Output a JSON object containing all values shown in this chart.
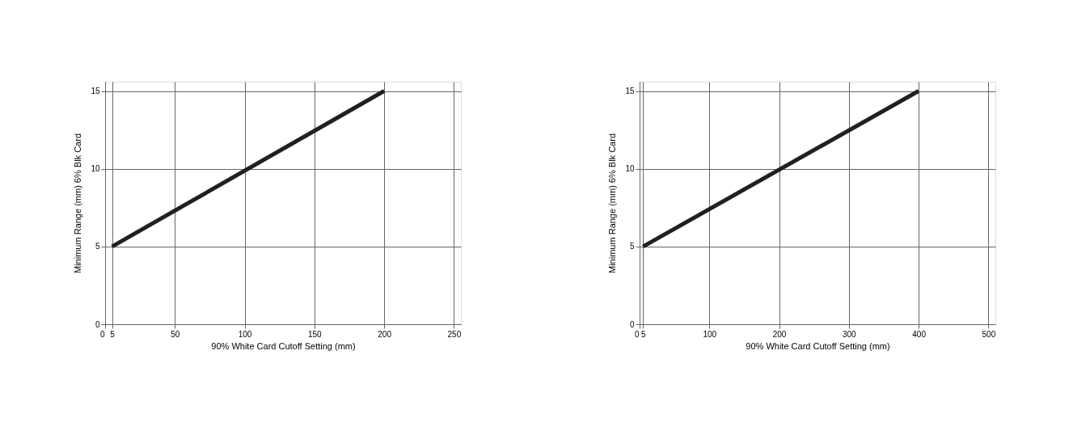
{
  "chart_data": [
    {
      "type": "line",
      "xlabel": "90% White Card Cutoff Setting (mm)",
      "ylabel": "Minimum Range (mm) 6% Blk Card",
      "x": [
        5,
        200
      ],
      "series": [
        {
          "color": "#231f20",
          "values": [
            5,
            15
          ]
        }
      ],
      "xlim": [
        0,
        255
      ],
      "ylim": [
        0,
        15.6
      ],
      "xticks": [
        0,
        5,
        50,
        100,
        150,
        200,
        250
      ],
      "yticks": [
        0,
        5,
        10,
        15
      ],
      "grid": true,
      "marker": "none",
      "line_style": "solid"
    },
    {
      "type": "line",
      "xlabel": "90% White Card Cutoff Setting (mm)",
      "ylabel": "Minimum Range (mm) 6% Blk Card",
      "x": [
        5,
        400
      ],
      "series": [
        {
          "color": "#231f20",
          "values": [
            5,
            15
          ]
        }
      ],
      "xlim": [
        0,
        510
      ],
      "ylim": [
        0,
        15.6
      ],
      "xticks": [
        0,
        5,
        100,
        200,
        300,
        400,
        500
      ],
      "yticks": [
        0,
        5,
        10,
        15
      ],
      "grid": true,
      "marker": "none",
      "line_style": "solid"
    }
  ]
}
